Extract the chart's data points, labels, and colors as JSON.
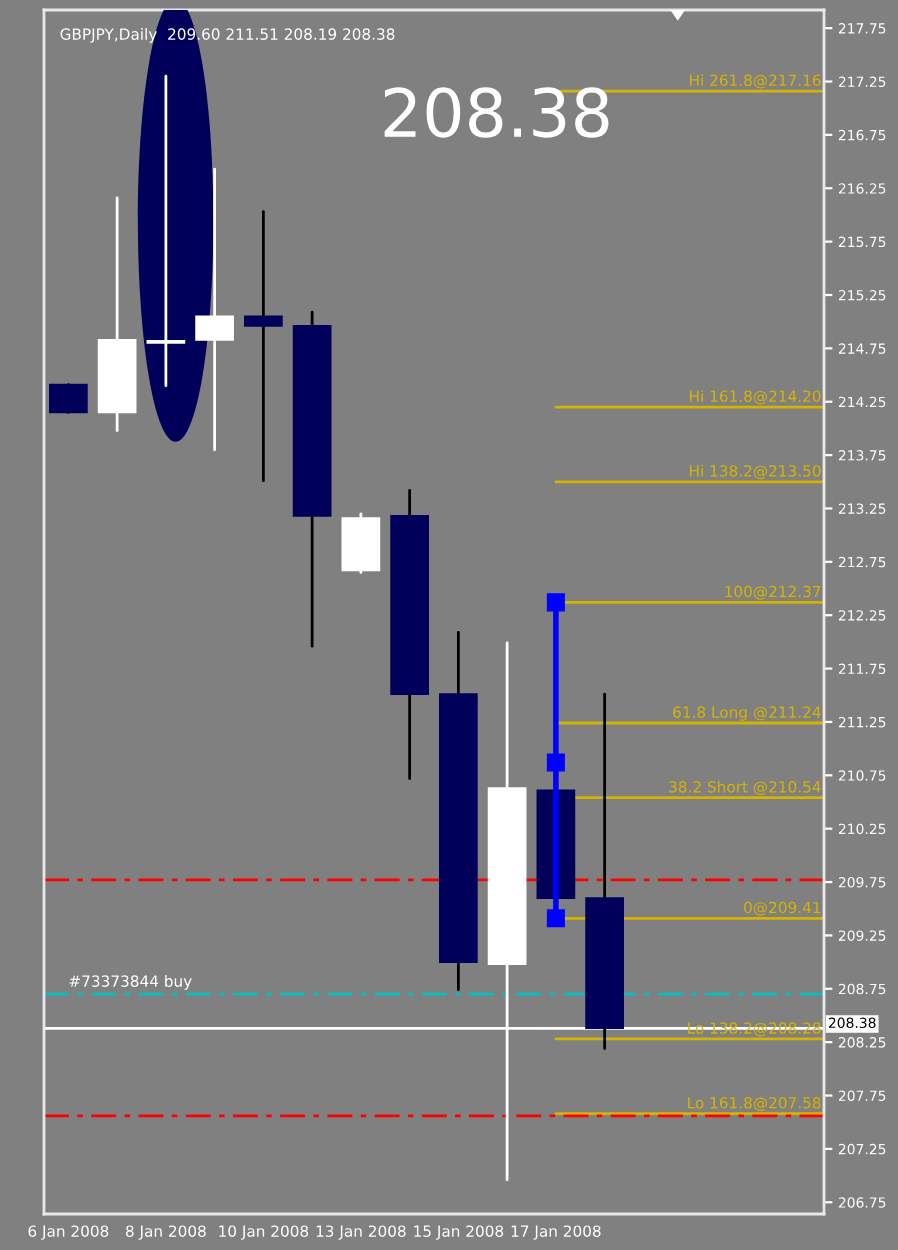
{
  "chart_data": {
    "type": "candlestick",
    "title": "GBPJPY,Daily  209.60 211.51 208.19 208.38",
    "categories": [
      "6 Jan 2008",
      null,
      "8 Jan 2008",
      null,
      "10 Jan 2008",
      null,
      "13 Jan 2008",
      null,
      "15 Jan 2008",
      null,
      "17 Jan 2008",
      null,
      null,
      null,
      null,
      null
    ],
    "ohlc": [
      [
        214.41,
        214.41,
        214.15,
        214.15
      ],
      [
        214.15,
        216.16,
        213.98,
        214.83
      ],
      [
        214.8,
        217.3,
        214.4,
        214.82
      ],
      [
        214.83,
        216.43,
        213.8,
        215.05
      ],
      [
        215.05,
        216.03,
        213.51,
        214.96
      ],
      [
        214.96,
        215.09,
        211.96,
        213.18
      ],
      [
        212.67,
        213.2,
        212.65,
        213.16
      ],
      [
        213.18,
        213.42,
        210.72,
        211.51
      ],
      [
        211.51,
        212.09,
        208.74,
        209.0
      ],
      [
        208.98,
        211.99,
        206.96,
        210.63
      ],
      [
        210.61,
        210.61,
        209.6,
        209.6
      ],
      [
        209.6,
        211.51,
        208.19,
        208.38
      ],
      null,
      null,
      null,
      null
    ],
    "colors": [
      "#00005a",
      "#ffffff",
      "#ffffff",
      "#ffffff",
      "#00005a",
      "#00005a",
      "#ffffff",
      "#00005a",
      "#00005a",
      "#ffffff",
      "#00005a",
      "#00005a",
      null,
      null,
      null,
      null
    ],
    "series": [
      {
        "type": "line",
        "color": "#0000ff",
        "marker": "square",
        "x": [
          "17 Jan 2008",
          "17 Jan 2008",
          "17 Jan 2008"
        ],
        "values": [
          212.37,
          210.87,
          209.41
        ]
      }
    ],
    "ylim": [
      206.64,
      217.92
    ],
    "yticks": [
      206.75,
      207.25,
      207.75,
      208.25,
      208.75,
      209.25,
      209.75,
      210.25,
      210.75,
      211.25,
      211.75,
      212.25,
      212.75,
      213.25,
      213.75,
      214.25,
      214.75,
      215.25,
      215.75,
      216.25,
      216.75,
      217.25,
      217.75
    ],
    "ref_lines": [
      {
        "axis": "y",
        "value": 217.16,
        "label": "Hi 261.8@217.16",
        "color": "#d4b400",
        "line_style": "solid"
      },
      {
        "axis": "y",
        "value": 214.2,
        "label": "Hi 161.8@214.20",
        "color": "#d4b400",
        "line_style": "solid"
      },
      {
        "axis": "y",
        "value": 213.5,
        "label": "Hi 138.2@213.50",
        "color": "#d4b400",
        "line_style": "solid"
      },
      {
        "axis": "y",
        "value": 212.37,
        "label": "100@212.37",
        "color": "#d4b400",
        "line_style": "solid"
      },
      {
        "axis": "y",
        "value": 211.24,
        "label": "61.8 Long @211.24",
        "color": "#d4b400",
        "line_style": "solid"
      },
      {
        "axis": "y",
        "value": 210.54,
        "label": "38.2 Short @210.54",
        "color": "#d4b400",
        "line_style": "solid"
      },
      {
        "axis": "y",
        "value": 209.41,
        "label": "0@209.41",
        "color": "#d4b400",
        "line_style": "solid"
      },
      {
        "axis": "y",
        "value": 208.28,
        "label": "Lo 138.2@208.28",
        "color": "#d4b400",
        "line_style": "solid"
      },
      {
        "axis": "y",
        "value": 207.58,
        "label": "Lo 161.8@207.58",
        "color": "#d4b400",
        "line_style": "solid"
      },
      {
        "axis": "y",
        "value": 209.77,
        "color": "#ff0000",
        "line_style": "dashed"
      },
      {
        "axis": "y",
        "value": 207.56,
        "color": "#ff0000",
        "line_style": "dashed"
      },
      {
        "axis": "y",
        "value": 208.7,
        "label": "#73373844 buy",
        "color": "#00c0c0",
        "line_style": "dashed"
      },
      {
        "axis": "y",
        "value": 208.38,
        "label": "208.38",
        "color": "#ffffff",
        "line_style": "solid"
      }
    ],
    "annotations": [
      "208.38"
    ],
    "grid": false,
    "legend": false
  }
}
